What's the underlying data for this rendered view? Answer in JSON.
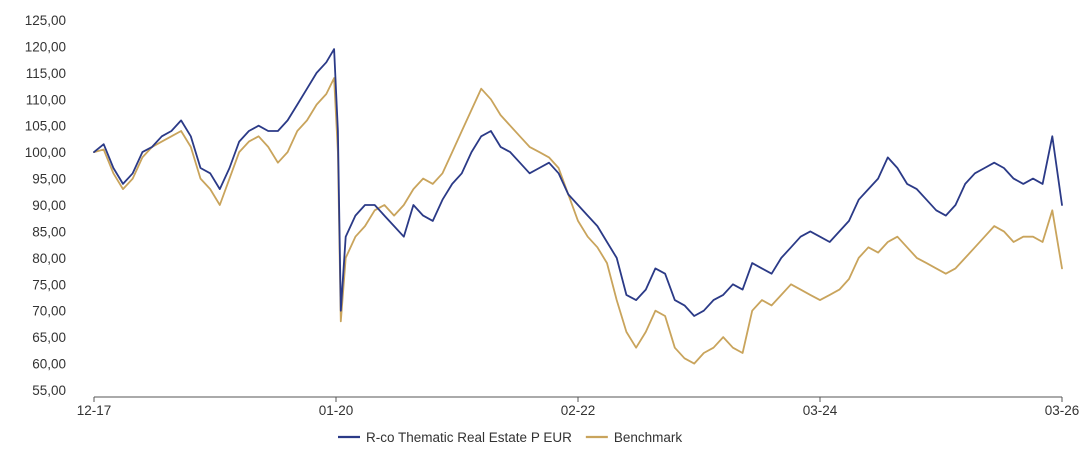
{
  "chart_data": {
    "type": "line",
    "title": "",
    "xlabel": "",
    "ylabel": "",
    "ylim": [
      55,
      125
    ],
    "y_ticks": [
      "55,00",
      "60,00",
      "65,00",
      "70,00",
      "75,00",
      "80,00",
      "85,00",
      "90,00",
      "95,00",
      "100,00",
      "105,00",
      "110,00",
      "115,00",
      "120,00",
      "125,00"
    ],
    "x_ticks": [
      {
        "label": "12-17",
        "x": 0
      },
      {
        "label": "01-20",
        "x": 25
      },
      {
        "label": "02-22",
        "x": 50
      },
      {
        "label": "03-24",
        "x": 75
      },
      {
        "label": "03-26",
        "x": 100
      }
    ],
    "legend_position": "bottom-center",
    "grid": false,
    "series": [
      {
        "name": "R-co Thematic Real Estate P EUR",
        "color": "#2b3a87",
        "points": [
          [
            0,
            100
          ],
          [
            1,
            101.5
          ],
          [
            2,
            97
          ],
          [
            3,
            94
          ],
          [
            4,
            96
          ],
          [
            5,
            100
          ],
          [
            6,
            101
          ],
          [
            7,
            103
          ],
          [
            8,
            104
          ],
          [
            9,
            106
          ],
          [
            10,
            103
          ],
          [
            11,
            97
          ],
          [
            12,
            96
          ],
          [
            13,
            93
          ],
          [
            14,
            97
          ],
          [
            15,
            102
          ],
          [
            16,
            104
          ],
          [
            17,
            105
          ],
          [
            18,
            104
          ],
          [
            19,
            104
          ],
          [
            20,
            106
          ],
          [
            21,
            109
          ],
          [
            22,
            112
          ],
          [
            23,
            115
          ],
          [
            24,
            117
          ],
          [
            24.8,
            119.5
          ],
          [
            25.2,
            104
          ],
          [
            25.5,
            70
          ],
          [
            26,
            84
          ],
          [
            27,
            88
          ],
          [
            28,
            90
          ],
          [
            29,
            90
          ],
          [
            30,
            88
          ],
          [
            31,
            86
          ],
          [
            32,
            84
          ],
          [
            33,
            90
          ],
          [
            34,
            88
          ],
          [
            35,
            87
          ],
          [
            36,
            91
          ],
          [
            37,
            94
          ],
          [
            38,
            96
          ],
          [
            39,
            100
          ],
          [
            40,
            103
          ],
          [
            41,
            104
          ],
          [
            42,
            101
          ],
          [
            43,
            100
          ],
          [
            44,
            98
          ],
          [
            45,
            96
          ],
          [
            46,
            97
          ],
          [
            47,
            98
          ],
          [
            48,
            96
          ],
          [
            49,
            92
          ],
          [
            50,
            90
          ],
          [
            51,
            88
          ],
          [
            52,
            86
          ],
          [
            53,
            83
          ],
          [
            54,
            80
          ],
          [
            55,
            73
          ],
          [
            56,
            72
          ],
          [
            57,
            74
          ],
          [
            58,
            78
          ],
          [
            59,
            77
          ],
          [
            60,
            72
          ],
          [
            61,
            71
          ],
          [
            62,
            69
          ],
          [
            63,
            70
          ],
          [
            64,
            72
          ],
          [
            65,
            73
          ],
          [
            66,
            75
          ],
          [
            67,
            74
          ],
          [
            68,
            79
          ],
          [
            69,
            78
          ],
          [
            70,
            77
          ],
          [
            71,
            80
          ],
          [
            72,
            82
          ],
          [
            73,
            84
          ],
          [
            74,
            85
          ],
          [
            75,
            84
          ],
          [
            76,
            83
          ],
          [
            77,
            85
          ],
          [
            78,
            87
          ],
          [
            79,
            91
          ],
          [
            80,
            93
          ],
          [
            81,
            95
          ],
          [
            82,
            99
          ],
          [
            83,
            97
          ],
          [
            84,
            94
          ],
          [
            85,
            93
          ],
          [
            86,
            91
          ],
          [
            87,
            89
          ],
          [
            88,
            88
          ],
          [
            89,
            90
          ],
          [
            90,
            94
          ],
          [
            91,
            96
          ],
          [
            92,
            97
          ],
          [
            93,
            98
          ],
          [
            94,
            97
          ],
          [
            95,
            95
          ],
          [
            96,
            94
          ],
          [
            97,
            95
          ],
          [
            98,
            94
          ],
          [
            99,
            103
          ],
          [
            100,
            90
          ]
        ]
      },
      {
        "name": "Benchmark",
        "color": "#c9a45c",
        "points": [
          [
            0,
            100
          ],
          [
            1,
            100.5
          ],
          [
            2,
            96
          ],
          [
            3,
            93
          ],
          [
            4,
            95
          ],
          [
            5,
            99
          ],
          [
            6,
            101
          ],
          [
            7,
            102
          ],
          [
            8,
            103
          ],
          [
            9,
            104
          ],
          [
            10,
            101
          ],
          [
            11,
            95
          ],
          [
            12,
            93
          ],
          [
            13,
            90
          ],
          [
            14,
            95
          ],
          [
            15,
            100
          ],
          [
            16,
            102
          ],
          [
            17,
            103
          ],
          [
            18,
            101
          ],
          [
            19,
            98
          ],
          [
            20,
            100
          ],
          [
            21,
            104
          ],
          [
            22,
            106
          ],
          [
            23,
            109
          ],
          [
            24,
            111
          ],
          [
            24.8,
            114
          ],
          [
            25.2,
            100
          ],
          [
            25.5,
            68
          ],
          [
            26,
            80
          ],
          [
            27,
            84
          ],
          [
            28,
            86
          ],
          [
            29,
            89
          ],
          [
            30,
            90
          ],
          [
            31,
            88
          ],
          [
            32,
            90
          ],
          [
            33,
            93
          ],
          [
            34,
            95
          ],
          [
            35,
            94
          ],
          [
            36,
            96
          ],
          [
            37,
            100
          ],
          [
            38,
            104
          ],
          [
            39,
            108
          ],
          [
            40,
            112
          ],
          [
            41,
            110
          ],
          [
            42,
            107
          ],
          [
            43,
            105
          ],
          [
            44,
            103
          ],
          [
            45,
            101
          ],
          [
            46,
            100
          ],
          [
            47,
            99
          ],
          [
            48,
            97
          ],
          [
            49,
            92
          ],
          [
            50,
            87
          ],
          [
            51,
            84
          ],
          [
            52,
            82
          ],
          [
            53,
            79
          ],
          [
            54,
            72
          ],
          [
            55,
            66
          ],
          [
            56,
            63
          ],
          [
            57,
            66
          ],
          [
            58,
            70
          ],
          [
            59,
            69
          ],
          [
            60,
            63
          ],
          [
            61,
            61
          ],
          [
            62,
            60
          ],
          [
            63,
            62
          ],
          [
            64,
            63
          ],
          [
            65,
            65
          ],
          [
            66,
            63
          ],
          [
            67,
            62
          ],
          [
            68,
            70
          ],
          [
            69,
            72
          ],
          [
            70,
            71
          ],
          [
            71,
            73
          ],
          [
            72,
            75
          ],
          [
            73,
            74
          ],
          [
            74,
            73
          ],
          [
            75,
            72
          ],
          [
            76,
            73
          ],
          [
            77,
            74
          ],
          [
            78,
            76
          ],
          [
            79,
            80
          ],
          [
            80,
            82
          ],
          [
            81,
            81
          ],
          [
            82,
            83
          ],
          [
            83,
            84
          ],
          [
            84,
            82
          ],
          [
            85,
            80
          ],
          [
            86,
            79
          ],
          [
            87,
            78
          ],
          [
            88,
            77
          ],
          [
            89,
            78
          ],
          [
            90,
            80
          ],
          [
            91,
            82
          ],
          [
            92,
            84
          ],
          [
            93,
            86
          ],
          [
            94,
            85
          ],
          [
            95,
            83
          ],
          [
            96,
            84
          ],
          [
            97,
            84
          ],
          [
            98,
            83
          ],
          [
            99,
            89
          ],
          [
            100,
            78
          ]
        ]
      }
    ]
  }
}
